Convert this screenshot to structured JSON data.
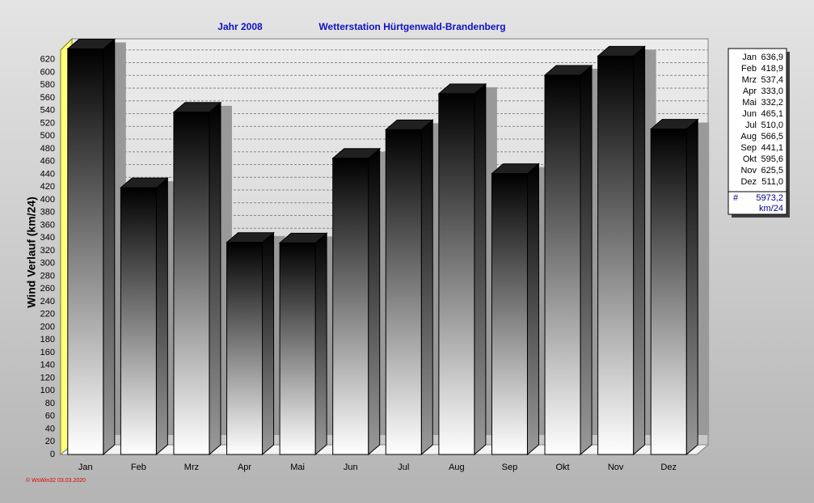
{
  "chart_data": {
    "type": "bar3d",
    "title": "Jahr  2008",
    "subtitle": "Wetterstation Hürtgenwald-Brandenberg",
    "y_label": "Wind Verlauf  (km/24)",
    "categories": [
      "Jan",
      "Feb",
      "Mrz",
      "Apr",
      "Mai",
      "Jun",
      "Jul",
      "Aug",
      "Sep",
      "Okt",
      "Nov",
      "Dez"
    ],
    "values": [
      636.9,
      418.9,
      537.4,
      333.0,
      332.2,
      465.1,
      510.0,
      566.5,
      441.1,
      595.6,
      625.5,
      511.0
    ],
    "value_labels": [
      "636,9",
      "418,9",
      "537,4",
      "333,0",
      "332,2",
      "465,1",
      "510,0",
      "566,5",
      "441,1",
      "595,6",
      "625,5",
      "511,0"
    ],
    "ylim": [
      0,
      640
    ],
    "yticks": [
      0,
      20,
      40,
      60,
      80,
      100,
      120,
      140,
      160,
      180,
      200,
      220,
      240,
      260,
      280,
      300,
      320,
      340,
      360,
      380,
      400,
      420,
      440,
      460,
      480,
      500,
      520,
      540,
      560,
      580,
      600,
      620
    ],
    "grid": true,
    "legend": {
      "symbol": "#",
      "total": 5973.2,
      "total_label": "5973,2",
      "unit": "km/24"
    },
    "footer": "© WsWin32  03.03.2020"
  }
}
